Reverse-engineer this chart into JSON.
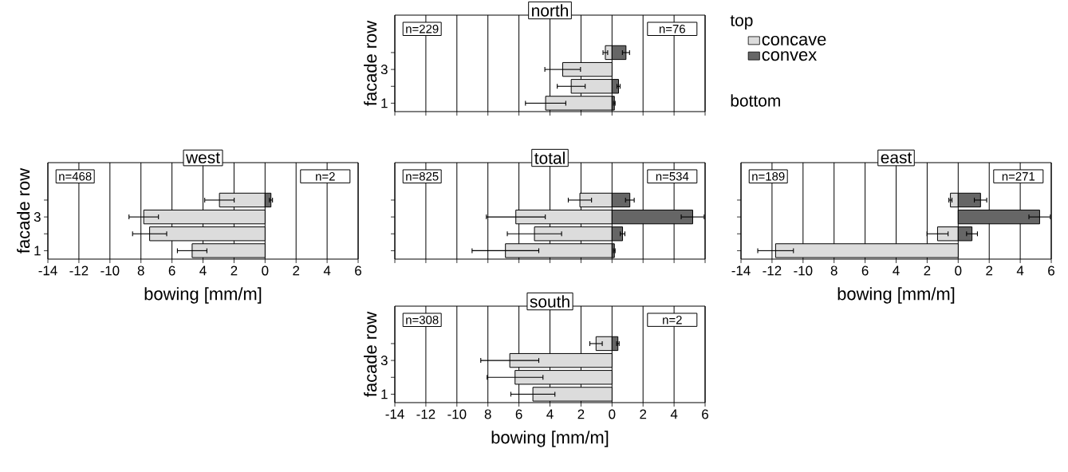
{
  "chart_data": [
    {
      "type": "bar",
      "orientation": "horizontal",
      "stacked": true,
      "title": "north",
      "ylabel": "facade row",
      "categories": [
        null,
        "3",
        null,
        "1"
      ],
      "series": [
        {
          "name": "concave",
          "color": "#dcdcdc",
          "values": [
            -0.43,
            -3.18,
            -2.63,
            -4.28
          ],
          "errors": [
            0.15,
            1.15,
            0.9,
            1.3
          ]
        },
        {
          "name": "convex",
          "color": "#666666",
          "values": [
            0.9,
            null,
            0.42,
            0.15
          ],
          "errors": [
            0.23,
            null,
            0.1,
            0.05
          ]
        }
      ],
      "xlim": [
        -14,
        6
      ],
      "xticks": [
        -14,
        -12,
        -10,
        -8,
        -6,
        -4,
        -2,
        0,
        2,
        4,
        6
      ],
      "grid": "x",
      "legend": "right",
      "tick_labels": "y",
      "annotations": [
        "n=229",
        "n=76",
        "top",
        "bottom"
      ]
    },
    {
      "type": "bar",
      "orientation": "horizontal",
      "stacked": true,
      "title": "west",
      "xlabel": "bowing [mm/m]",
      "ylabel": "facade row",
      "categories": [
        null,
        "3",
        null,
        "1"
      ],
      "series": [
        {
          "color": "#dcdcdc",
          "values": [
            -2.94,
            -7.82,
            -7.44,
            -4.7
          ],
          "errors": [
            0.95,
            0.95,
            1.1,
            0.95
          ]
        },
        {
          "color": "#666666",
          "values": [
            0.38,
            null,
            null,
            null
          ],
          "errors": [
            0.1,
            null,
            null,
            null
          ]
        }
      ],
      "xlim": [
        -14,
        6
      ],
      "xticks": [
        -14,
        -12,
        -10,
        {
          "value": -8,
          "label": "8"
        },
        {
          "value": -6,
          "label": "6"
        },
        {
          "value": -4,
          "label": "4"
        },
        {
          "value": -2,
          "label": "2"
        },
        0,
        2,
        4,
        6
      ],
      "grid": "x",
      "annotations": [
        "n=468",
        "n=2"
      ]
    },
    {
      "type": "bar",
      "orientation": "horizontal",
      "stacked": true,
      "title": "total",
      "categories": [
        null,
        null,
        null,
        null
      ],
      "series": [
        {
          "color": "#dcdcdc",
          "values": [
            -2.07,
            -6.2,
            -5.0,
            -6.87
          ],
          "errors": [
            0.75,
            1.9,
            1.75,
            2.15
          ]
        },
        {
          "color": "#666666",
          "values": [
            1.15,
            5.2,
            0.68,
            0.15
          ],
          "errors": [
            0.28,
            0.74,
            0.15,
            0.05
          ]
        }
      ],
      "xlim": [
        -14,
        6
      ],
      "xticks": [
        -14,
        -12,
        -10,
        -8,
        -6,
        -4,
        -2,
        0,
        2,
        4,
        6
      ],
      "grid": "x",
      "tick_labels": false,
      "annotations": [
        "n=825",
        "n=534"
      ]
    },
    {
      "type": "bar",
      "orientation": "horizontal",
      "stacked": true,
      "title": "east",
      "xlabel": "bowing [mm/m]",
      "categories": [
        null,
        null,
        null,
        null
      ],
      "series": [
        {
          "color": "#dcdcdc",
          "values": [
            -0.5,
            null,
            -1.33,
            -11.77
          ],
          "errors": [
            0.1,
            null,
            0.68,
            1.15
          ]
        },
        {
          "color": "#666666",
          "values": [
            1.44,
            5.25,
            0.89,
            null
          ],
          "errors": [
            0.4,
            0.69,
            0.35,
            null
          ]
        }
      ],
      "xlim": [
        -14,
        6
      ],
      "xticks": [
        -14,
        -12,
        -10,
        {
          "value": -8,
          "label": "8"
        },
        {
          "value": -6,
          "label": "6"
        },
        {
          "value": -4,
          "label": "4"
        },
        {
          "value": -2,
          "label": "2"
        },
        0,
        2,
        4,
        6
      ],
      "grid": "x",
      "tick_labels": "x",
      "annotations": [
        "n=189",
        "n=271"
      ]
    },
    {
      "type": "bar",
      "orientation": "horizontal",
      "stacked": true,
      "title": "south",
      "xlabel": "bowing [mm/m]",
      "ylabel": "facade row",
      "categories": [
        null,
        "3",
        null,
        "1"
      ],
      "series": [
        {
          "color": "#dcdcdc",
          "values": [
            -1.03,
            -6.59,
            -6.25,
            -5.1
          ],
          "errors": [
            0.4,
            1.87,
            1.8,
            1.42
          ]
        },
        {
          "color": "#666666",
          "values": [
            0.38,
            null,
            null,
            null
          ],
          "errors": [
            0.08,
            null,
            null,
            null
          ]
        }
      ],
      "xlim": [
        -14,
        6
      ],
      "xticks": [
        -14,
        -12,
        -10,
        {
          "value": -8,
          "label": "8"
        },
        {
          "value": -6,
          "label": "6"
        },
        {
          "value": -4,
          "label": "4"
        },
        {
          "value": -2,
          "label": "2"
        },
        0,
        2,
        4,
        6
      ],
      "grid": "x",
      "annotations": [
        "n=308",
        "n=2"
      ]
    }
  ]
}
